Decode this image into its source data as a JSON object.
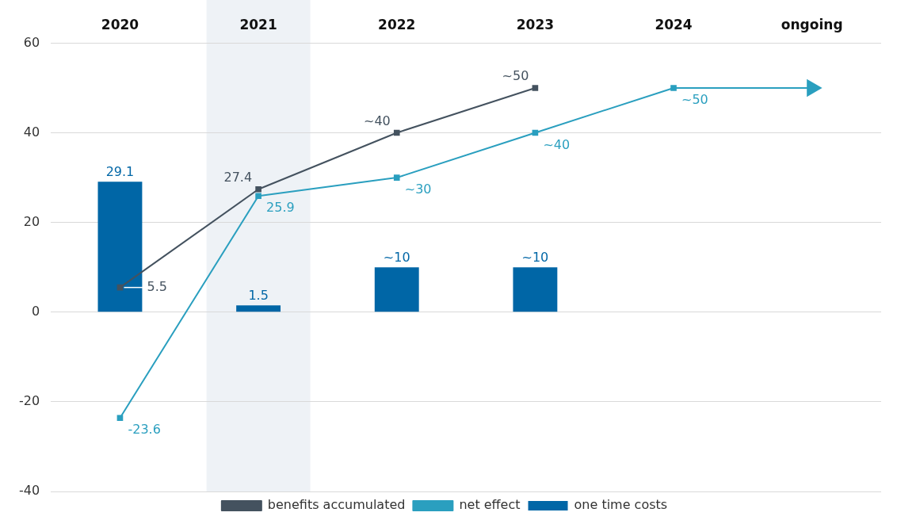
{
  "chart_data": {
    "type": "bar",
    "categories": [
      "2020",
      "2021",
      "2022",
      "2023",
      "2024",
      "ongoing"
    ],
    "ylim": [
      -40,
      60
    ],
    "yticks": [
      -40,
      -20,
      0,
      20,
      40,
      60
    ],
    "grid": "y",
    "legend": "bottom",
    "marker": "square",
    "bands": [
      {
        "axis": "x",
        "from": "2021",
        "to": "2021",
        "color": "#eef2f6"
      }
    ],
    "series": [
      {
        "name": "one time costs",
        "color": "#0066a6",
        "values": [
          29.1,
          1.5,
          10,
          10,
          null,
          null
        ],
        "value_labels": [
          "29.1",
          "1.5",
          "~10",
          "~10",
          null,
          null
        ]
      },
      {
        "name": "benefits accumulated",
        "type": "line",
        "color": "#44525f",
        "values": [
          5.5,
          27.4,
          40,
          50,
          null,
          null
        ],
        "value_labels": [
          "5.5",
          "27.4",
          "~40",
          "~50",
          null,
          null
        ]
      },
      {
        "name": "net effect",
        "type": "line",
        "color": "#2a9fbf",
        "values": [
          -23.6,
          25.9,
          30,
          40,
          50,
          50
        ],
        "value_labels": [
          "-23.6",
          "25.9",
          "~30",
          "~40",
          "~50",
          null
        ]
      }
    ]
  }
}
